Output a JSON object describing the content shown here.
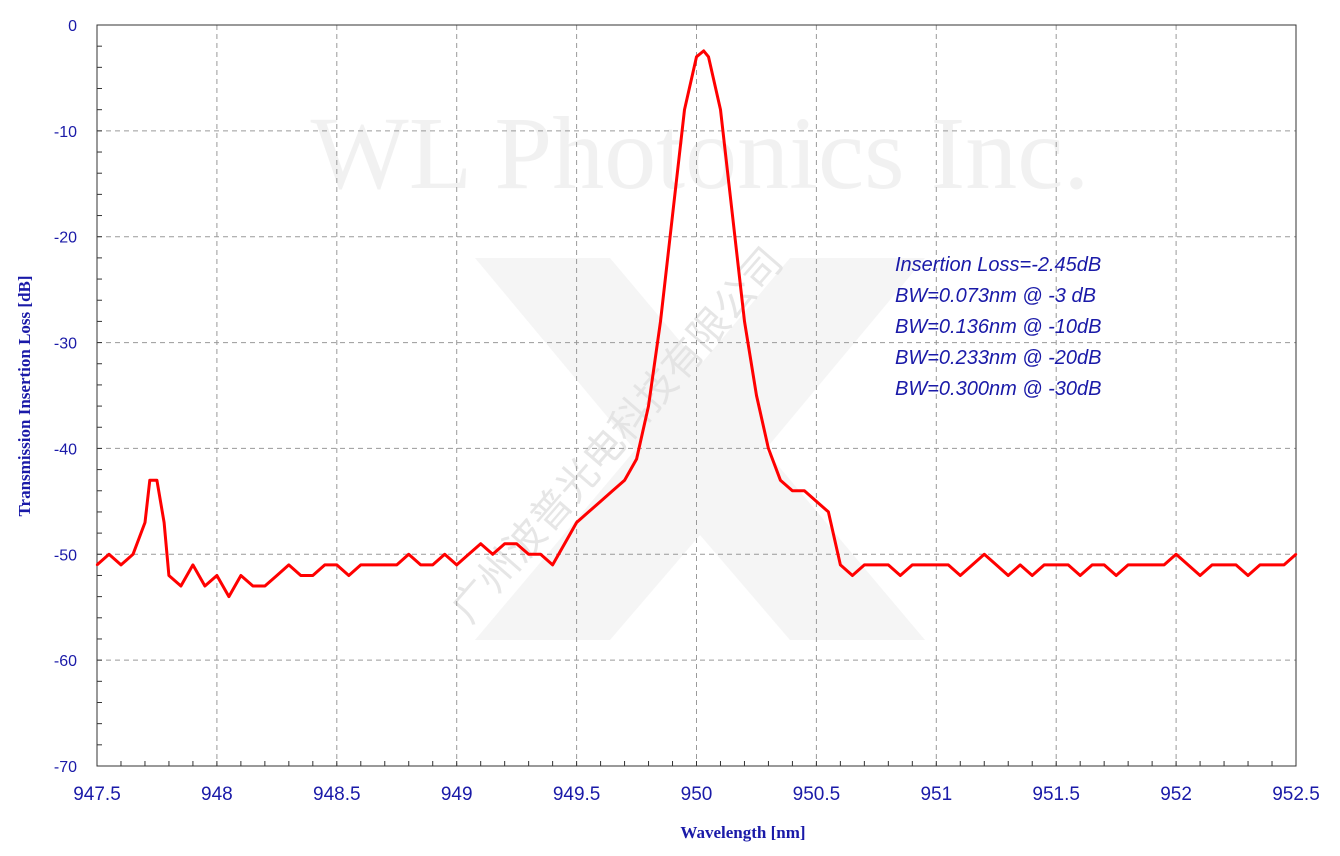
{
  "chart_data": {
    "type": "line",
    "title": "",
    "xlabel": "Wavelength [nm]",
    "ylabel": "Transmission Insertion Loss [dB]",
    "xlim": [
      947.5,
      952.5
    ],
    "ylim": [
      -70,
      0
    ],
    "x_ticks": [
      "947.5",
      "948",
      "948.5",
      "949",
      "949.5",
      "950",
      "950.5",
      "951",
      "951.5",
      "952",
      "952.5"
    ],
    "y_ticks": [
      "0",
      "-10",
      "-20",
      "-30",
      "-40",
      "-50",
      "-60",
      "-70"
    ],
    "grid": true,
    "series": [
      {
        "color": "#ff0000",
        "x": [
          947.5,
          947.55,
          947.6,
          947.65,
          947.7,
          947.72,
          947.75,
          947.78,
          947.8,
          947.85,
          947.9,
          947.95,
          948.0,
          948.05,
          948.1,
          948.15,
          948.2,
          948.25,
          948.3,
          948.35,
          948.4,
          948.45,
          948.5,
          948.55,
          948.6,
          948.65,
          948.7,
          948.75,
          948.8,
          948.85,
          948.9,
          948.95,
          949.0,
          949.05,
          949.1,
          949.15,
          949.2,
          949.25,
          949.3,
          949.35,
          949.4,
          949.45,
          949.5,
          949.55,
          949.6,
          949.65,
          949.7,
          949.75,
          949.8,
          949.85,
          949.9,
          949.95,
          950.0,
          950.03,
          950.05,
          950.1,
          950.15,
          950.2,
          950.25,
          950.3,
          950.35,
          950.4,
          950.45,
          950.5,
          950.55,
          950.6,
          950.65,
          950.7,
          950.75,
          950.8,
          950.85,
          950.9,
          950.95,
          951.0,
          951.05,
          951.1,
          951.15,
          951.2,
          951.25,
          951.3,
          951.35,
          951.4,
          951.45,
          951.5,
          951.55,
          951.6,
          951.65,
          951.7,
          951.75,
          951.8,
          951.85,
          951.9,
          951.95,
          952.0,
          952.05,
          952.1,
          952.15,
          952.2,
          952.25,
          952.3,
          952.35,
          952.4,
          952.45,
          952.5
        ],
        "y": [
          -51,
          -50,
          -51,
          -50,
          -47,
          -43,
          -43,
          -47,
          -52,
          -53,
          -51,
          -53,
          -52,
          -54,
          -52,
          -53,
          -53,
          -52,
          -51,
          -52,
          -52,
          -51,
          -51,
          -52,
          -51,
          -51,
          -51,
          -51,
          -50,
          -51,
          -51,
          -50,
          -51,
          -50,
          -49,
          -50,
          -49,
          -49,
          -50,
          -50,
          -51,
          -49,
          -47,
          -46,
          -45,
          -44,
          -43,
          -41,
          -36,
          -28,
          -18,
          -8,
          -3,
          -2.45,
          -3,
          -8,
          -18,
          -28,
          -35,
          -40,
          -43,
          -44,
          -44,
          -45,
          -46,
          -51,
          -52,
          -51,
          -51,
          -51,
          -52,
          -51,
          -51,
          -51,
          -51,
          -52,
          -51,
          -50,
          -51,
          -52,
          -51,
          -52,
          -51,
          -51,
          -51,
          -52,
          -51,
          -51,
          -52,
          -51,
          -51,
          -51,
          -51,
          -50,
          -51,
          -52,
          -51,
          -51,
          -51,
          -52,
          -51,
          -51,
          -51,
          -50
        ]
      }
    ],
    "annotations": [
      "Insertion Loss=-2.45dB",
      "BW=0.073nm @ -3 dB",
      "BW=0.136nm @ -10dB",
      "BW=0.233nm @ -20dB",
      "BW=0.300nm @ -30dB"
    ]
  },
  "watermark": {
    "company": "WL Photonics Inc.",
    "chinese": "广州波普光电科技有限公司"
  }
}
